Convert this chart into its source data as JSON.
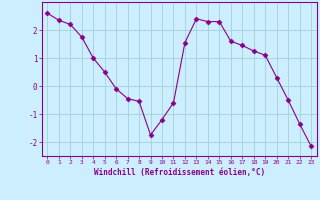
{
  "x": [
    0,
    1,
    2,
    3,
    4,
    5,
    6,
    7,
    8,
    9,
    10,
    11,
    12,
    13,
    14,
    15,
    16,
    17,
    18,
    19,
    20,
    21,
    22,
    23
  ],
  "y": [
    2.6,
    2.35,
    2.2,
    1.75,
    1.0,
    0.5,
    -0.1,
    -0.45,
    -0.55,
    -1.75,
    -1.2,
    -0.6,
    1.55,
    2.4,
    2.3,
    2.3,
    1.6,
    1.45,
    1.25,
    1.1,
    0.3,
    -0.5,
    -1.35,
    -2.15
  ],
  "line_color": "#880088",
  "marker": "D",
  "marker_size": 2.5,
  "bg_color": "#cceeff",
  "grid_color": "#99cccc",
  "xlabel": "Windchill (Refroidissement éolien,°C)",
  "xlabel_color": "#880088",
  "tick_color": "#880088",
  "spine_color": "#880088",
  "ylim": [
    -2.5,
    3.0
  ],
  "xlim": [
    -0.5,
    23.5
  ],
  "yticks": [
    -2,
    -1,
    0,
    1,
    2
  ],
  "xticks": [
    0,
    1,
    2,
    3,
    4,
    5,
    6,
    7,
    8,
    9,
    10,
    11,
    12,
    13,
    14,
    15,
    16,
    17,
    18,
    19,
    20,
    21,
    22,
    23
  ],
  "figsize": [
    3.2,
    2.0
  ],
  "dpi": 100
}
